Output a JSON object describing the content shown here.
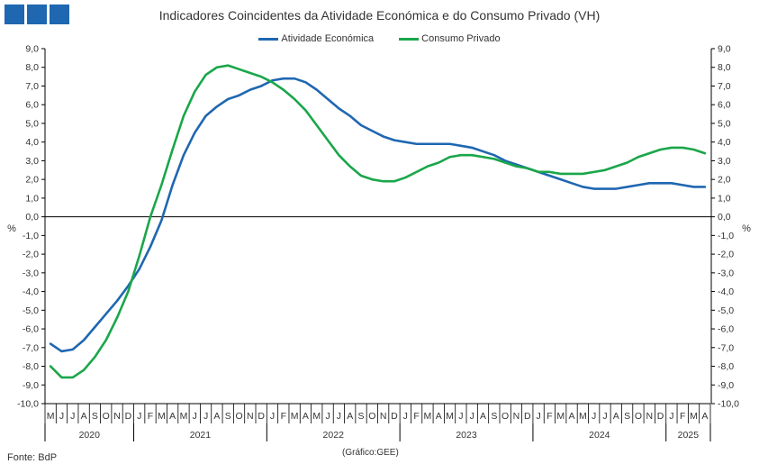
{
  "title": "Indicadores Coincidentes da Atividade Económica e do Consumo Privado (VH)",
  "source": "Fonte: BdP",
  "credit": "(Gráfico:GEE)",
  "unit_left": "%",
  "unit_right": "%",
  "colors": {
    "logo": "#1f67b1",
    "activity": "#1f67b1",
    "consumption": "#1aa64a",
    "axis": "#000000"
  },
  "chart_data": {
    "type": "line",
    "title": "Indicadores Coincidentes da Atividade Económica e do Consumo Privado (VH)",
    "xlabel": "",
    "ylabel": "%",
    "ylim": [
      -10,
      9
    ],
    "yticks": [
      9,
      8,
      7,
      6,
      5,
      4,
      3,
      2,
      1,
      0,
      -1,
      -2,
      -3,
      -4,
      -5,
      -6,
      -7,
      -8,
      -9,
      -10
    ],
    "ytick_labels": [
      "9,0",
      "8,0",
      "7,0",
      "6,0",
      "5,0",
      "4,0",
      "3,0",
      "2,0",
      "1,0",
      "0,0",
      "-1,0",
      "-2,0",
      "-3,0",
      "-4,0",
      "-5,0",
      "-6,0",
      "-7,0",
      "-8,0",
      "-9,0",
      "-10,0"
    ],
    "grid": false,
    "legend_position": "top-center",
    "month_labels": [
      "M",
      "J",
      "J",
      "A",
      "S",
      "O",
      "N",
      "D",
      "J",
      "F",
      "M",
      "A",
      "M",
      "J",
      "J",
      "A",
      "S",
      "O",
      "N",
      "D",
      "J",
      "F",
      "M",
      "A",
      "M",
      "J",
      "J",
      "A",
      "S",
      "O",
      "N",
      "D",
      "J",
      "F",
      "M",
      "A",
      "M",
      "J",
      "J",
      "A",
      "S",
      "O",
      "N",
      "D",
      "J",
      "F",
      "M",
      "A",
      "M",
      "J",
      "J",
      "A",
      "S",
      "O",
      "N",
      "D",
      "J",
      "F",
      "M",
      "A"
    ],
    "year_groups": [
      {
        "label": "2020",
        "months": 8
      },
      {
        "label": "2021",
        "months": 12
      },
      {
        "label": "2022",
        "months": 12
      },
      {
        "label": "2023",
        "months": 12
      },
      {
        "label": "2024",
        "months": 12
      },
      {
        "label": "2025",
        "months": 4
      }
    ],
    "series": [
      {
        "name": "Atividade Económica",
        "values": [
          -6.8,
          -7.2,
          -7.1,
          -6.6,
          -5.9,
          -5.2,
          -4.5,
          -3.7,
          -2.8,
          -1.6,
          -0.2,
          1.7,
          3.3,
          4.5,
          5.4,
          5.9,
          6.3,
          6.5,
          6.8,
          7.0,
          7.3,
          7.4,
          7.4,
          7.2,
          6.8,
          6.3,
          5.8,
          5.4,
          4.9,
          4.6,
          4.3,
          4.1,
          4.0,
          3.9,
          3.9,
          3.9,
          3.9,
          3.8,
          3.7,
          3.5,
          3.3,
          3.0,
          2.8,
          2.6,
          2.4,
          2.2,
          2.0,
          1.8,
          1.6,
          1.5,
          1.5,
          1.5,
          1.6,
          1.7,
          1.8,
          1.8,
          1.8,
          1.7,
          1.6,
          1.6
        ]
      },
      {
        "name": "Consumo Privado",
        "values": [
          -8.0,
          -8.6,
          -8.6,
          -8.2,
          -7.5,
          -6.6,
          -5.4,
          -4.0,
          -2.1,
          0.0,
          1.7,
          3.6,
          5.4,
          6.7,
          7.6,
          8.0,
          8.1,
          7.9,
          7.7,
          7.5,
          7.2,
          6.8,
          6.3,
          5.7,
          4.9,
          4.1,
          3.3,
          2.7,
          2.2,
          2.0,
          1.9,
          1.9,
          2.1,
          2.4,
          2.7,
          2.9,
          3.2,
          3.3,
          3.3,
          3.2,
          3.1,
          2.9,
          2.7,
          2.6,
          2.4,
          2.4,
          2.3,
          2.3,
          2.3,
          2.4,
          2.5,
          2.7,
          2.9,
          3.2,
          3.4,
          3.6,
          3.7,
          3.7,
          3.6,
          3.4
        ]
      }
    ]
  }
}
